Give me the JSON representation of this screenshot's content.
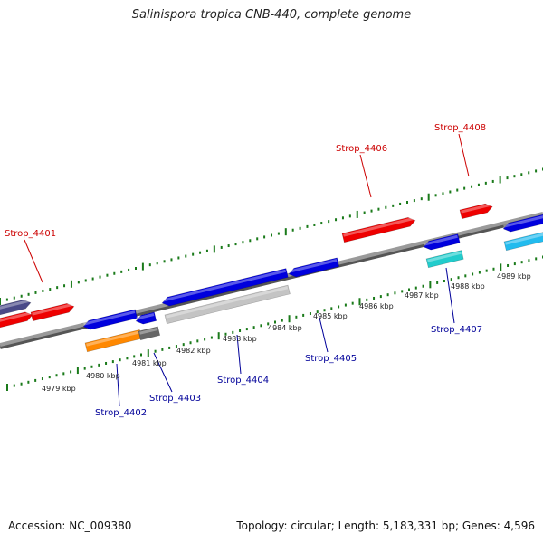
{
  "title": "Salinispora tropica CNB-440, complete genome",
  "footer": {
    "accession": "Accession: NC_009380",
    "summary": "Topology: circular; Length: 5,183,331 bp; Genes: 4,596"
  },
  "colors": {
    "backbone": "#8a8a8a",
    "tick": "#1a7a1a",
    "label_top": "#cc0000",
    "label_bottom": "#000099",
    "gene_red": "#ee0000",
    "gene_blue": "#0000dd",
    "gene_gray": "#c4c4c4",
    "gene_cyan": "#22cccc",
    "gene_light_blue": "#22bbee",
    "gene_orange": "#ff8800",
    "gene_darkgray": "#666666",
    "gene_slate": "#4a4a88"
  },
  "kbp_ticks": [
    "4979 kbp",
    "4980 kbp",
    "4981 kbp",
    "4982 kbp",
    "4983 kbp",
    "4984 kbp",
    "4985 kbp",
    "4986 kbp",
    "4987 kbp",
    "4988 kbp",
    "4989 kbp"
  ],
  "gene_labels": {
    "top": [
      "Strop_4401",
      "Strop_4406",
      "Strop_4408"
    ],
    "bottom": [
      "Strop_4402",
      "Strop_4403",
      "Strop_4404",
      "Strop_4405",
      "Strop_4407"
    ]
  }
}
